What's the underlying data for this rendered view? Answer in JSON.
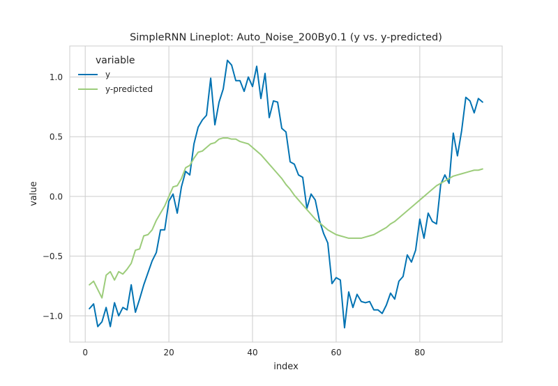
{
  "chart_data": {
    "type": "line",
    "title": "SimpleRNN Lineplot: Auto_Noise_200By0.1 (y vs. y-predicted)",
    "xlabel": "index",
    "ylabel": "value",
    "xlim": [
      -3.7,
      99.7
    ],
    "ylim": [
      -1.22,
      1.26
    ],
    "x_ticks": [
      0,
      20,
      40,
      60,
      80
    ],
    "x_tick_labels": [
      "0",
      "20",
      "40",
      "60",
      "80"
    ],
    "y_ticks": [
      -1.0,
      -0.5,
      0.0,
      0.5,
      1.0
    ],
    "y_tick_labels": [
      "−1.0",
      "−0.5",
      "0.0",
      "0.5",
      "1.0"
    ],
    "grid": true,
    "legend": {
      "title": "variable",
      "position": "top-left"
    },
    "x": [
      1,
      2,
      3,
      4,
      5,
      6,
      7,
      8,
      9,
      10,
      11,
      12,
      13,
      14,
      15,
      16,
      17,
      18,
      19,
      20,
      21,
      22,
      23,
      24,
      25,
      26,
      27,
      28,
      29,
      30,
      31,
      32,
      33,
      34,
      35,
      36,
      37,
      38,
      39,
      40,
      41,
      42,
      43,
      44,
      45,
      46,
      47,
      48,
      49,
      50,
      51,
      52,
      53,
      54,
      55,
      56,
      57,
      58,
      59,
      60,
      61,
      62,
      63,
      64,
      65,
      66,
      67,
      68,
      69,
      70,
      71,
      72,
      73,
      74,
      75,
      76,
      77,
      78,
      79,
      80,
      81,
      82,
      83,
      84,
      85,
      86,
      87,
      88,
      89,
      90,
      91,
      92,
      93,
      94,
      95
    ],
    "series": [
      {
        "name": "y",
        "color": "#0072b2",
        "values": [
          -0.94,
          -0.9,
          -1.09,
          -1.05,
          -0.93,
          -1.09,
          -0.89,
          -1.0,
          -0.93,
          -0.95,
          -0.74,
          -0.97,
          -0.86,
          -0.74,
          -0.64,
          -0.54,
          -0.47,
          -0.28,
          -0.28,
          -0.04,
          0.02,
          -0.14,
          0.08,
          0.21,
          0.18,
          0.44,
          0.58,
          0.64,
          0.68,
          0.99,
          0.6,
          0.79,
          0.9,
          1.14,
          1.1,
          0.97,
          0.97,
          0.88,
          1.0,
          0.92,
          1.09,
          0.82,
          1.03,
          0.66,
          0.8,
          0.79,
          0.57,
          0.54,
          0.29,
          0.27,
          0.18,
          0.16,
          -0.1,
          0.02,
          -0.03,
          -0.2,
          -0.31,
          -0.39,
          -0.73,
          -0.68,
          -0.7,
          -1.1,
          -0.8,
          -0.93,
          -0.82,
          -0.88,
          -0.89,
          -0.88,
          -0.95,
          -0.95,
          -0.98,
          -0.91,
          -0.81,
          -0.86,
          -0.71,
          -0.67,
          -0.49,
          -0.55,
          -0.45,
          -0.19,
          -0.35,
          -0.14,
          -0.21,
          -0.23,
          0.1,
          0.18,
          0.11,
          0.53,
          0.34,
          0.55,
          0.83,
          0.8,
          0.7,
          0.82,
          0.79
        ]
      },
      {
        "name": "y-predicted",
        "color": "#9ccc7a",
        "values": [
          -0.74,
          -0.71,
          -0.78,
          -0.85,
          -0.66,
          -0.63,
          -0.7,
          -0.63,
          -0.65,
          -0.61,
          -0.56,
          -0.45,
          -0.44,
          -0.33,
          -0.32,
          -0.28,
          -0.2,
          -0.14,
          -0.08,
          0.0,
          0.08,
          0.09,
          0.15,
          0.24,
          0.26,
          0.32,
          0.37,
          0.38,
          0.41,
          0.44,
          0.45,
          0.48,
          0.49,
          0.49,
          0.48,
          0.48,
          0.46,
          0.45,
          0.44,
          0.41,
          0.38,
          0.35,
          0.31,
          0.27,
          0.23,
          0.19,
          0.15,
          0.1,
          0.06,
          0.01,
          -0.03,
          -0.07,
          -0.11,
          -0.15,
          -0.19,
          -0.22,
          -0.25,
          -0.28,
          -0.3,
          -0.32,
          -0.33,
          -0.34,
          -0.35,
          -0.35,
          -0.35,
          -0.35,
          -0.34,
          -0.33,
          -0.32,
          -0.3,
          -0.28,
          -0.26,
          -0.23,
          -0.21,
          -0.18,
          -0.15,
          -0.12,
          -0.09,
          -0.06,
          -0.03,
          0.0,
          0.03,
          0.06,
          0.09,
          0.11,
          0.13,
          0.15,
          0.17,
          0.18,
          0.19,
          0.2,
          0.21,
          0.22,
          0.22,
          0.23
        ]
      }
    ]
  }
}
